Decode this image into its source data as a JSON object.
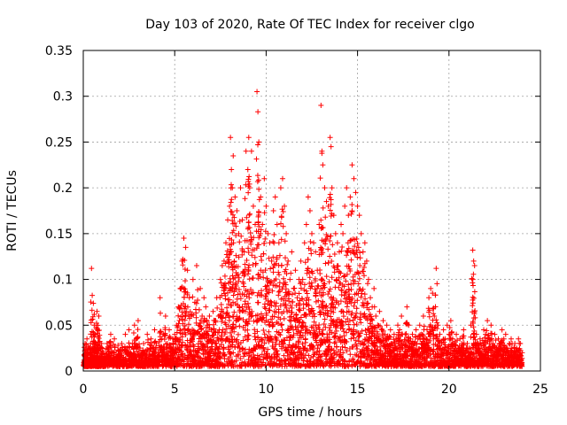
{
  "chart_data": {
    "type": "scatter",
    "title": "Day 103 of 2020, Rate Of TEC Index for receiver clgo",
    "xlabel": "GPS time / hours",
    "ylabel": "ROTI / TECUs",
    "xlim": [
      0,
      25
    ],
    "ylim": [
      0,
      0.35
    ],
    "xticks": [
      0,
      5,
      10,
      15,
      20,
      25
    ],
    "yticks": [
      0,
      0.05,
      0.1,
      0.15,
      0.2,
      0.25,
      0.3,
      0.35
    ],
    "xtick_labels": [
      "0",
      "5",
      "10",
      "15",
      "20",
      "25"
    ],
    "ytick_labels": [
      "0",
      "0.05",
      "0.1",
      "0.15",
      "0.2",
      "0.25",
      "0.3",
      "0.35"
    ],
    "grid": true,
    "marker": "+",
    "color": "#ff0000",
    "series": [
      {
        "name": "ROTI",
        "points": [
          [
            0.05,
            0.012
          ],
          [
            0.1,
            0.03
          ],
          [
            0.15,
            0.02
          ],
          [
            0.2,
            0.035
          ],
          [
            0.25,
            0.015
          ],
          [
            0.3,
            0.025
          ],
          [
            0.35,
            0.02
          ],
          [
            0.4,
            0.03
          ],
          [
            0.45,
            0.112
          ],
          [
            0.5,
            0.018
          ],
          [
            0.55,
            0.074
          ],
          [
            0.6,
            0.05
          ],
          [
            0.65,
            0.04
          ],
          [
            0.7,
            0.03
          ],
          [
            0.75,
            0.065
          ],
          [
            0.8,
            0.02
          ],
          [
            0.85,
            0.06
          ],
          [
            0.9,
            0.015
          ],
          [
            0.95,
            0.025
          ],
          [
            1.0,
            0.03
          ],
          [
            1.1,
            0.02
          ],
          [
            1.2,
            0.015
          ],
          [
            1.3,
            0.03
          ],
          [
            1.4,
            0.025
          ],
          [
            1.5,
            0.04
          ],
          [
            1.6,
            0.02
          ],
          [
            1.7,
            0.035
          ],
          [
            1.8,
            0.018
          ],
          [
            1.9,
            0.028
          ],
          [
            2.0,
            0.022
          ],
          [
            2.1,
            0.03
          ],
          [
            2.2,
            0.015
          ],
          [
            2.3,
            0.04
          ],
          [
            2.4,
            0.025
          ],
          [
            2.5,
            0.045
          ],
          [
            2.6,
            0.02
          ],
          [
            2.7,
            0.03
          ],
          [
            2.8,
            0.05
          ],
          [
            2.9,
            0.035
          ],
          [
            3.0,
            0.055
          ],
          [
            3.1,
            0.025
          ],
          [
            3.2,
            0.02
          ],
          [
            3.3,
            0.03
          ],
          [
            3.4,
            0.022
          ],
          [
            3.5,
            0.04
          ],
          [
            3.6,
            0.018
          ],
          [
            3.7,
            0.035
          ],
          [
            3.8,
            0.025
          ],
          [
            3.9,
            0.045
          ],
          [
            4.0,
            0.03
          ],
          [
            4.1,
            0.02
          ],
          [
            4.2,
            0.08
          ],
          [
            4.3,
            0.035
          ],
          [
            4.4,
            0.04
          ],
          [
            4.5,
            0.06
          ],
          [
            4.6,
            0.03
          ],
          [
            4.7,
            0.045
          ],
          [
            4.8,
            0.025
          ],
          [
            4.9,
            0.035
          ],
          [
            5.0,
            0.04
          ],
          [
            5.1,
            0.05
          ],
          [
            5.2,
            0.07
          ],
          [
            5.3,
            0.09
          ],
          [
            5.4,
            0.12
          ],
          [
            5.5,
            0.145
          ],
          [
            5.6,
            0.135
          ],
          [
            5.7,
            0.11
          ],
          [
            5.8,
            0.08
          ],
          [
            5.9,
            0.06
          ],
          [
            6.0,
            0.1
          ],
          [
            6.1,
            0.075
          ],
          [
            6.2,
            0.115
          ],
          [
            6.3,
            0.05
          ],
          [
            6.4,
            0.09
          ],
          [
            6.5,
            0.06
          ],
          [
            6.6,
            0.08
          ],
          [
            6.7,
            0.07
          ],
          [
            6.8,
            0.05
          ],
          [
            6.9,
            0.06
          ],
          [
            7.0,
            0.045
          ],
          [
            7.1,
            0.065
          ],
          [
            7.2,
            0.055
          ],
          [
            7.3,
            0.08
          ],
          [
            7.4,
            0.06
          ],
          [
            7.5,
            0.1
          ],
          [
            7.6,
            0.115
          ],
          [
            7.7,
            0.12
          ],
          [
            7.8,
            0.14
          ],
          [
            7.9,
            0.165
          ],
          [
            8.0,
            0.18
          ],
          [
            8.05,
            0.255
          ],
          [
            8.1,
            0.22
          ],
          [
            8.15,
            0.2
          ],
          [
            8.2,
            0.235
          ],
          [
            8.3,
            0.19
          ],
          [
            8.4,
            0.175
          ],
          [
            8.5,
            0.15
          ],
          [
            8.6,
            0.2
          ],
          [
            8.7,
            0.165
          ],
          [
            8.8,
            0.13
          ],
          [
            8.9,
            0.24
          ],
          [
            9.0,
            0.22
          ],
          [
            9.05,
            0.255
          ],
          [
            9.1,
            0.2
          ],
          [
            9.2,
            0.24
          ],
          [
            9.3,
            0.18
          ],
          [
            9.4,
            0.16
          ],
          [
            9.5,
            0.305
          ],
          [
            9.55,
            0.283
          ],
          [
            9.6,
            0.25
          ],
          [
            9.7,
            0.19
          ],
          [
            9.8,
            0.16
          ],
          [
            9.9,
            0.21
          ],
          [
            10.0,
            0.18
          ],
          [
            10.1,
            0.15
          ],
          [
            10.2,
            0.14
          ],
          [
            10.3,
            0.12
          ],
          [
            10.4,
            0.175
          ],
          [
            10.5,
            0.19
          ],
          [
            10.6,
            0.16
          ],
          [
            10.7,
            0.14
          ],
          [
            10.8,
            0.2
          ],
          [
            10.9,
            0.21
          ],
          [
            11.0,
            0.18
          ],
          [
            11.1,
            0.15
          ],
          [
            11.2,
            0.12
          ],
          [
            11.3,
            0.1
          ],
          [
            11.4,
            0.13
          ],
          [
            11.5,
            0.09
          ],
          [
            11.6,
            0.11
          ],
          [
            11.7,
            0.08
          ],
          [
            11.8,
            0.1
          ],
          [
            11.9,
            0.12
          ],
          [
            12.0,
            0.1
          ],
          [
            12.1,
            0.14
          ],
          [
            12.2,
            0.16
          ],
          [
            12.3,
            0.19
          ],
          [
            12.4,
            0.175
          ],
          [
            12.5,
            0.15
          ],
          [
            12.6,
            0.14
          ],
          [
            12.7,
            0.13
          ],
          [
            12.8,
            0.11
          ],
          [
            12.9,
            0.16
          ],
          [
            13.0,
            0.29
          ],
          [
            13.05,
            0.24
          ],
          [
            13.1,
            0.225
          ],
          [
            13.2,
            0.2
          ],
          [
            13.3,
            0.185
          ],
          [
            13.4,
            0.18
          ],
          [
            13.5,
            0.255
          ],
          [
            13.55,
            0.245
          ],
          [
            13.6,
            0.2
          ],
          [
            13.7,
            0.17
          ],
          [
            13.8,
            0.15
          ],
          [
            13.9,
            0.14
          ],
          [
            14.0,
            0.13
          ],
          [
            14.1,
            0.16
          ],
          [
            14.2,
            0.15
          ],
          [
            14.3,
            0.18
          ],
          [
            14.4,
            0.2
          ],
          [
            14.5,
            0.17
          ],
          [
            14.6,
            0.19
          ],
          [
            14.7,
            0.225
          ],
          [
            14.8,
            0.21
          ],
          [
            14.9,
            0.195
          ],
          [
            15.0,
            0.18
          ],
          [
            15.1,
            0.17
          ],
          [
            15.2,
            0.15
          ],
          [
            15.3,
            0.13
          ],
          [
            15.4,
            0.14
          ],
          [
            15.5,
            0.12
          ],
          [
            15.6,
            0.1
          ],
          [
            15.7,
            0.08
          ],
          [
            15.8,
            0.07
          ],
          [
            15.9,
            0.09
          ],
          [
            16.0,
            0.06
          ],
          [
            16.1,
            0.05
          ],
          [
            16.2,
            0.065
          ],
          [
            16.3,
            0.045
          ],
          [
            16.4,
            0.055
          ],
          [
            16.5,
            0.04
          ],
          [
            16.6,
            0.05
          ],
          [
            16.7,
            0.035
          ],
          [
            16.8,
            0.045
          ],
          [
            16.9,
            0.03
          ],
          [
            17.0,
            0.04
          ],
          [
            17.1,
            0.035
          ],
          [
            17.2,
            0.05
          ],
          [
            17.3,
            0.045
          ],
          [
            17.4,
            0.06
          ],
          [
            17.5,
            0.03
          ],
          [
            17.6,
            0.04
          ],
          [
            17.7,
            0.07
          ],
          [
            17.8,
            0.05
          ],
          [
            17.9,
            0.035
          ],
          [
            18.0,
            0.04
          ],
          [
            18.1,
            0.03
          ],
          [
            18.2,
            0.045
          ],
          [
            18.3,
            0.035
          ],
          [
            18.4,
            0.05
          ],
          [
            18.5,
            0.04
          ],
          [
            18.6,
            0.06
          ],
          [
            18.7,
            0.035
          ],
          [
            18.8,
            0.045
          ],
          [
            18.9,
            0.08
          ],
          [
            19.0,
            0.09
          ],
          [
            19.1,
            0.085
          ],
          [
            19.2,
            0.06
          ],
          [
            19.3,
            0.112
          ],
          [
            19.4,
            0.05
          ],
          [
            19.5,
            0.04
          ],
          [
            19.6,
            0.03
          ],
          [
            19.7,
            0.045
          ],
          [
            19.8,
            0.035
          ],
          [
            19.9,
            0.05
          ],
          [
            20.0,
            0.04
          ],
          [
            20.1,
            0.055
          ],
          [
            20.2,
            0.035
          ],
          [
            20.3,
            0.03
          ],
          [
            20.4,
            0.04
          ],
          [
            20.5,
            0.025
          ],
          [
            20.6,
            0.035
          ],
          [
            20.7,
            0.03
          ],
          [
            20.8,
            0.045
          ],
          [
            20.9,
            0.02
          ],
          [
            21.0,
            0.03
          ],
          [
            21.1,
            0.025
          ],
          [
            21.2,
            0.05
          ],
          [
            21.3,
            0.132
          ],
          [
            21.35,
            0.12
          ],
          [
            21.4,
            0.115
          ],
          [
            21.5,
            0.04
          ],
          [
            21.6,
            0.03
          ],
          [
            21.7,
            0.035
          ],
          [
            21.8,
            0.025
          ],
          [
            21.9,
            0.045
          ],
          [
            22.0,
            0.04
          ],
          [
            22.1,
            0.055
          ],
          [
            22.2,
            0.035
          ],
          [
            22.3,
            0.05
          ],
          [
            22.4,
            0.03
          ],
          [
            22.5,
            0.04
          ],
          [
            22.6,
            0.025
          ],
          [
            22.7,
            0.035
          ],
          [
            22.8,
            0.03
          ],
          [
            22.9,
            0.045
          ],
          [
            23.0,
            0.035
          ],
          [
            23.1,
            0.04
          ],
          [
            23.2,
            0.025
          ],
          [
            23.3,
            0.03
          ],
          [
            23.4,
            0.035
          ],
          [
            23.5,
            0.02
          ],
          [
            23.6,
            0.03
          ],
          [
            23.7,
            0.025
          ],
          [
            23.8,
            0.035
          ],
          [
            23.9,
            0.03
          ],
          [
            24.0,
            0.02
          ]
        ]
      }
    ],
    "background_noise": {
      "x_range": [
        0,
        24
      ],
      "y_floor": 0.005
    }
  }
}
